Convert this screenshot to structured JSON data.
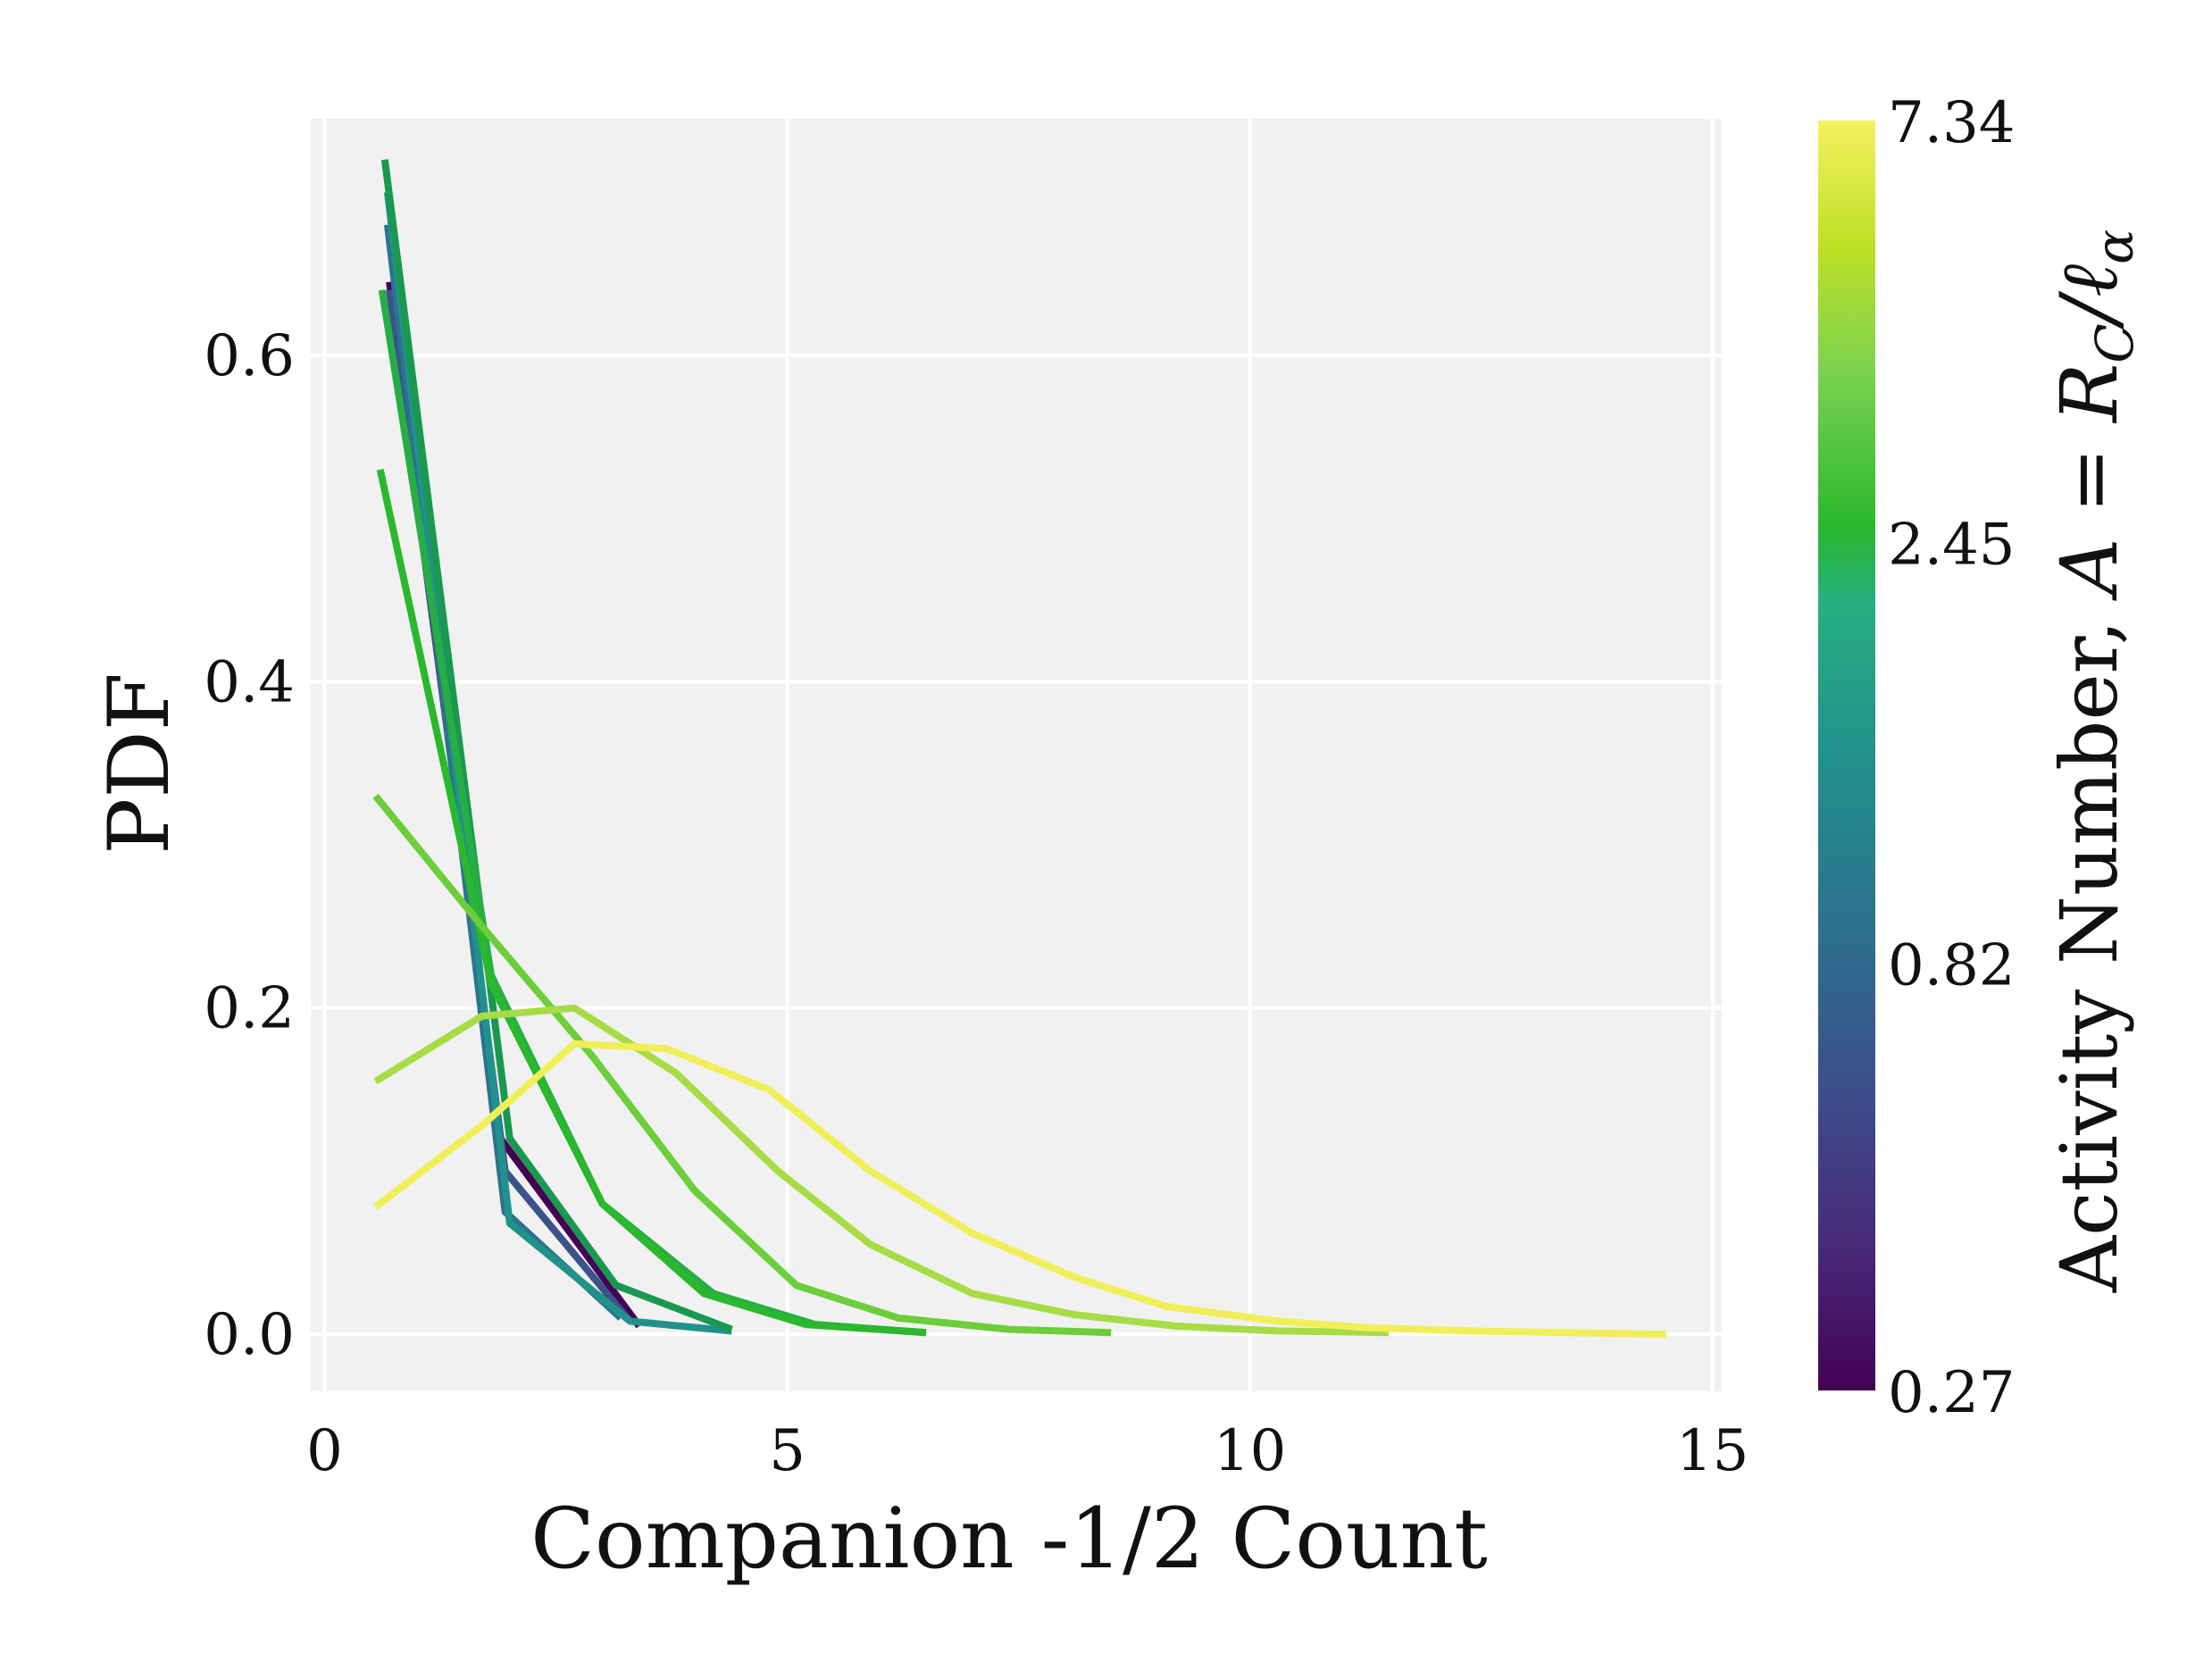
{
  "chart_data": {
    "type": "line",
    "title": "",
    "xlabel": "Companion -1/2 Count",
    "ylabel": "PDF",
    "xlim": [
      -0.15,
      15.1
    ],
    "ylim": [
      -0.035,
      0.745
    ],
    "xticks": [
      {
        "value": 0,
        "label": "0"
      },
      {
        "value": 5,
        "label": "5"
      },
      {
        "value": 10,
        "label": "10"
      },
      {
        "value": 15,
        "label": "15"
      }
    ],
    "yticks": [
      {
        "value": 0.0,
        "label": "0.0"
      },
      {
        "value": 0.2,
        "label": "0.2"
      },
      {
        "value": 0.4,
        "label": "0.4"
      },
      {
        "value": 0.6,
        "label": "0.6"
      }
    ],
    "grid": true,
    "background": "#f1f1f1",
    "colormap": "viridis",
    "colorbar": {
      "label": "Activity Number, A = R_C / ℓ_α",
      "label_plain": "Activity Number, ",
      "label_math": "A = R",
      "label_sub": "C",
      "label_rest": "/ℓ",
      "label_sub2": "α",
      "ticks": [
        "7.34",
        "2.45",
        "0.82",
        "0.27"
      ],
      "scale": "log",
      "range": [
        0.27,
        7.34
      ]
    },
    "series": [
      {
        "activity": 0.27,
        "color": "#440154",
        "x": [
          0.7,
          1.9,
          3.4
        ],
        "y": [
          0.645,
          0.12,
          0.005
        ]
      },
      {
        "activity": 0.42,
        "color": "#3b528b",
        "x": [
          0.7,
          1.95,
          3.3
        ],
        "y": [
          0.64,
          0.1,
          0.008
        ]
      },
      {
        "activity": 0.6,
        "color": "#2c728e",
        "x": [
          0.68,
          1.95,
          3.2
        ],
        "y": [
          0.68,
          0.075,
          0.01
        ]
      },
      {
        "activity": 0.82,
        "color": "#21918c",
        "x": [
          0.68,
          2.0,
          3.3,
          4.4
        ],
        "y": [
          0.7,
          0.068,
          0.008,
          0.002
        ]
      },
      {
        "activity": 1.2,
        "color": "#1a9850",
        "x": [
          0.65,
          2.0,
          3.15,
          4.4
        ],
        "y": [
          0.72,
          0.12,
          0.03,
          0.003
        ]
      },
      {
        "activity": 1.6,
        "color": "#27ad45",
        "x": [
          0.62,
          1.8,
          3.0,
          4.2,
          5.3,
          6.5
        ],
        "y": [
          0.64,
          0.22,
          0.08,
          0.025,
          0.006,
          0.001
        ]
      },
      {
        "activity": 2.45,
        "color": "#2ab82e",
        "x": [
          0.6,
          1.8,
          3.0,
          4.1,
          5.2,
          6.5
        ],
        "y": [
          0.53,
          0.215,
          0.08,
          0.025,
          0.006,
          0.001
        ]
      },
      {
        "activity": 3.4,
        "color": "#6cce3a",
        "x": [
          0.55,
          1.7,
          2.9,
          4.0,
          5.1,
          6.2,
          7.4,
          8.5
        ],
        "y": [
          0.33,
          0.25,
          0.17,
          0.088,
          0.03,
          0.01,
          0.003,
          0.001
        ]
      },
      {
        "activity": 4.8,
        "color": "#a8dc47",
        "x": [
          0.55,
          1.7,
          2.7,
          3.8,
          4.9,
          5.9,
          7.0,
          8.1,
          9.2,
          10.3,
          11.5
        ],
        "y": [
          0.155,
          0.195,
          0.2,
          0.16,
          0.1,
          0.055,
          0.025,
          0.012,
          0.005,
          0.002,
          0.001
        ]
      },
      {
        "activity": 7.34,
        "color": "#f0ef5a",
        "x": [
          0.55,
          1.7,
          2.7,
          3.7,
          4.8,
          5.9,
          7.0,
          8.1,
          9.1,
          10.3,
          11.3,
          12.4,
          13.4,
          14.5
        ],
        "y": [
          0.078,
          0.128,
          0.178,
          0.175,
          0.15,
          0.1,
          0.062,
          0.035,
          0.017,
          0.008,
          0.004,
          0.002,
          0.001,
          0.0
        ]
      }
    ]
  }
}
